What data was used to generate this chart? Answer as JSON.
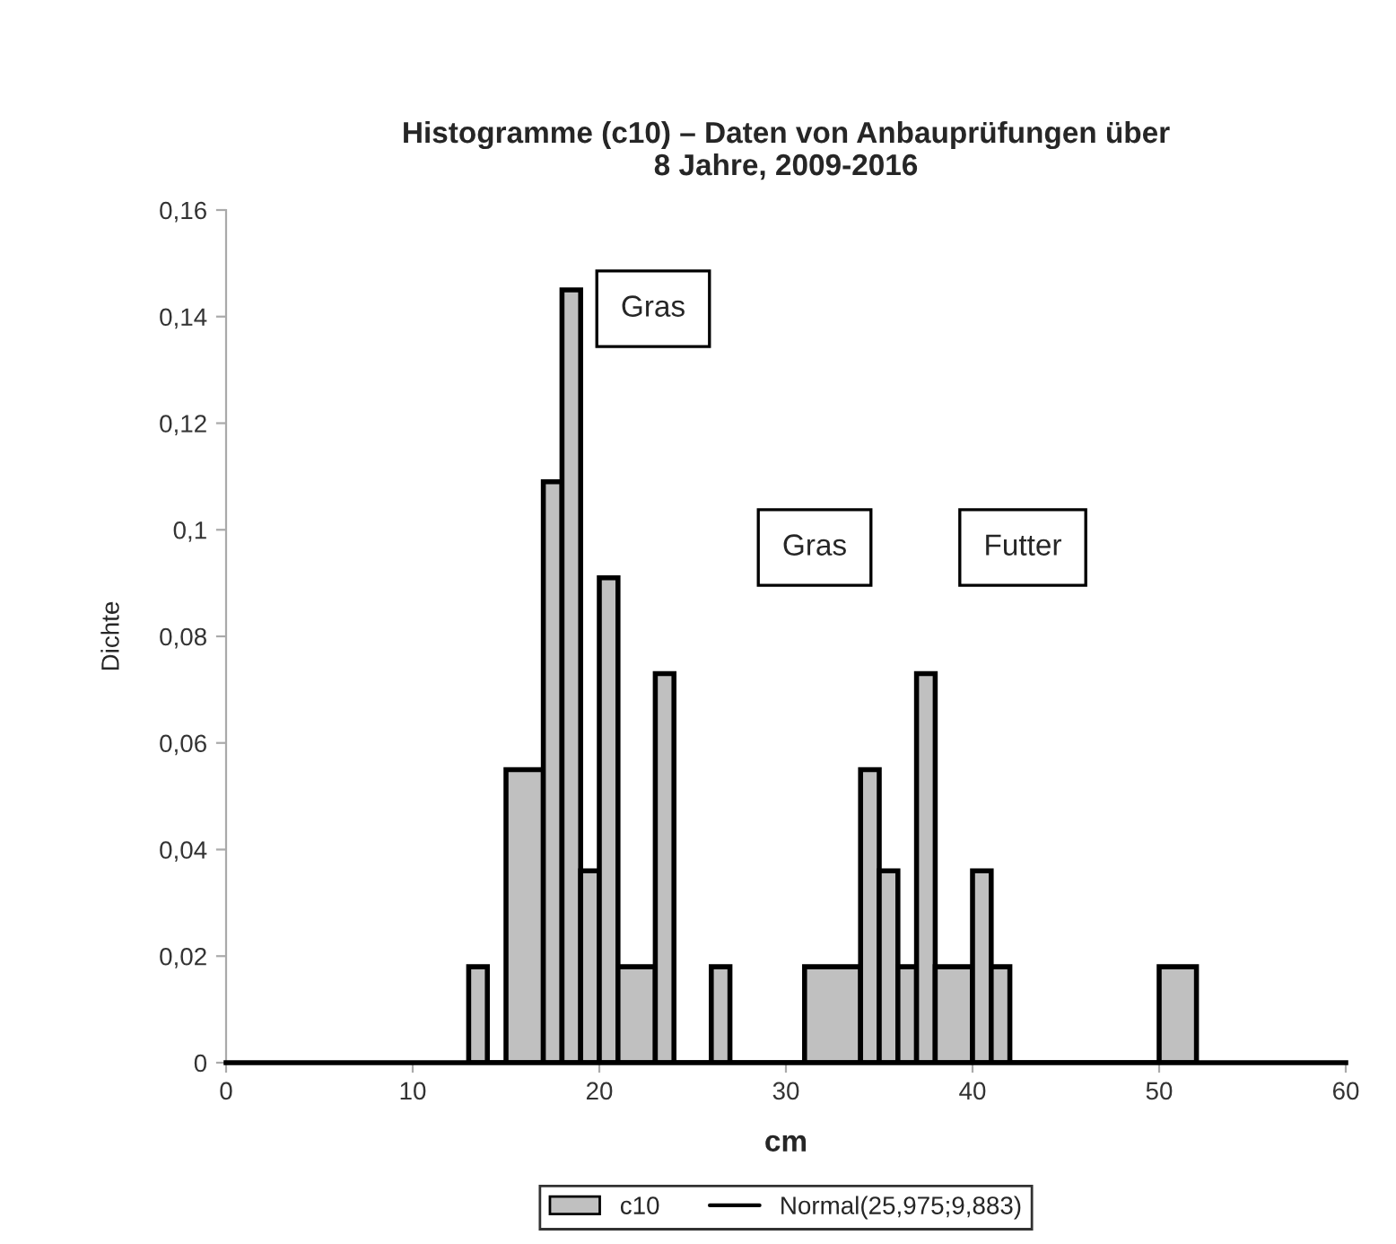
{
  "chart_data": {
    "type": "histogram",
    "title": "Histogramme (c10) – Daten von Anbauprüfungen über\n8 Jahre, 2009-2016",
    "xlabel": "cm",
    "ylabel": "Dichte",
    "bins": [
      13,
      14,
      15,
      17,
      18,
      19,
      20,
      21,
      23,
      24,
      26,
      27,
      31,
      34,
      35,
      36,
      37,
      38,
      40,
      41,
      42,
      50,
      52
    ],
    "series": [
      {
        "name": "c10",
        "color": "#c0c0c0",
        "values": [
          0.018,
          0,
          0.055,
          0.109,
          0.145,
          0.036,
          0.091,
          0.018,
          0.073,
          0,
          0.018,
          0,
          0.018,
          0.055,
          0.036,
          0.018,
          0.073,
          0.018,
          0.036,
          0.018,
          0,
          0.018
        ]
      },
      {
        "name": "Normal(25,975;9,883)",
        "type": "line",
        "color": "#000000"
      }
    ],
    "xlim": [
      0,
      60
    ],
    "xticks": [
      0,
      10,
      20,
      30,
      40,
      50,
      60
    ],
    "ylim": [
      0,
      0.16
    ],
    "yticks": [
      0,
      {
        "value": 0.02,
        "label": "0,02"
      },
      {
        "value": 0.04,
        "label": "0,04"
      },
      {
        "value": 0.06,
        "label": "0,06"
      },
      {
        "value": 0.08,
        "label": "0,08"
      },
      {
        "value": 0.1,
        "label": "0,1"
      },
      {
        "value": 0.12,
        "label": "0,12"
      },
      {
        "value": 0.14,
        "label": "0,14"
      },
      {
        "value": 0.16,
        "label": "0,16"
      }
    ],
    "annotations": [
      "Gras",
      "Gras",
      "Futter"
    ],
    "grid": false,
    "legend": "bottom"
  }
}
